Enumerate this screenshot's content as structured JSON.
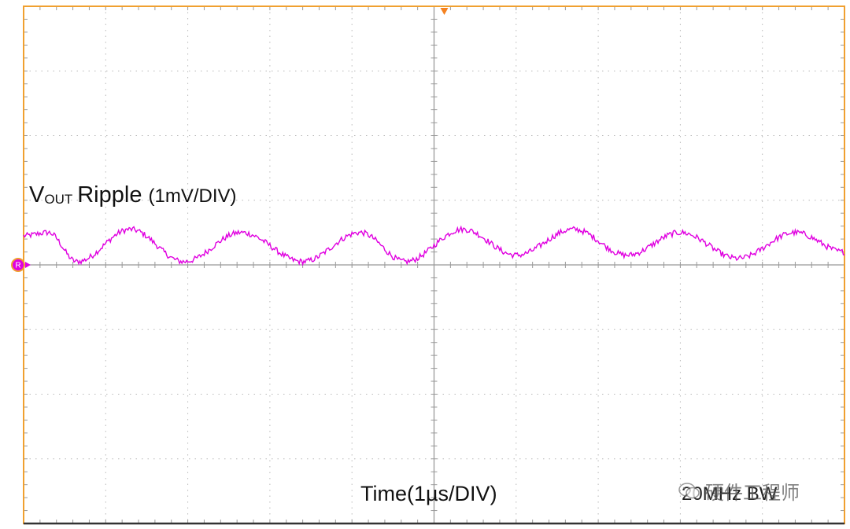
{
  "chart_data": {
    "type": "line",
    "title": "",
    "channel_label": {
      "main": "V",
      "subscript": "OUT",
      "text": "Ripple",
      "scale": "(1mV/DIV)"
    },
    "xlabel": "Time(1µs/DIV)",
    "bandwidth_label": "20MHz BW",
    "x_unit": "µs",
    "y_unit": "mV",
    "xlim": [
      0,
      10
    ],
    "ylim": [
      -4,
      4
    ],
    "grid": true,
    "divisions": {
      "x": 10,
      "y": 8
    },
    "series": [
      {
        "color": "#e000e0",
        "x": [
          0,
          0.3,
          0.65,
          1.3,
          1.95,
          2.65,
          3.4,
          4.1,
          4.65,
          5.35,
          6.0,
          6.7,
          7.35,
          8.0,
          8.7,
          9.4,
          10.0
        ],
        "y": [
          0.45,
          0.5,
          0.05,
          0.55,
          0.05,
          0.5,
          0.05,
          0.5,
          0.05,
          0.55,
          0.15,
          0.55,
          0.15,
          0.5,
          0.1,
          0.5,
          0.2
        ]
      }
    ],
    "colors": {
      "frame": "#f0a030",
      "grid": "#b8b8b8",
      "axis": "#999999",
      "trace": "#e000e0",
      "trigger": "#f58220",
      "ground_marker": "#e000e0"
    }
  },
  "markers": {
    "ground_label": "R",
    "trigger_marker": "▼"
  },
  "watermark": {
    "text": "硬件工程师",
    "icon": "wechat-icon"
  }
}
